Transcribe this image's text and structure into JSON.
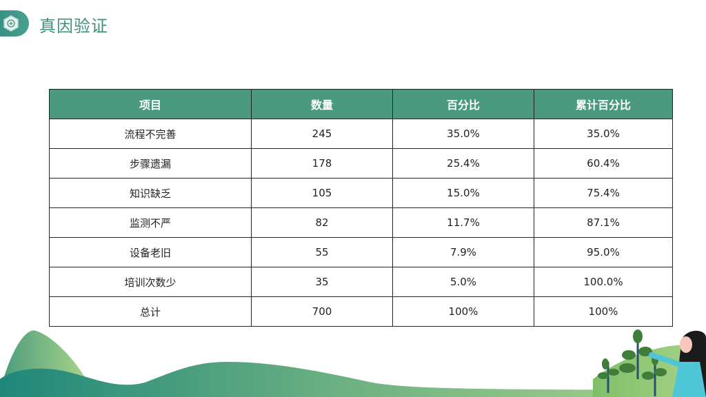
{
  "header": {
    "title": "真因验证",
    "icon": "hexagon-plus-icon"
  },
  "table": {
    "columns": [
      "项目",
      "数量",
      "百分比",
      "累计百分比"
    ],
    "rows": [
      [
        "流程不完善",
        "245",
        "35.0%",
        "35.0%"
      ],
      [
        "步骤遗漏",
        "178",
        "25.4%",
        "60.4%"
      ],
      [
        "知识缺乏",
        "105",
        "15.0%",
        "75.4%"
      ],
      [
        "监测不严",
        "82",
        "11.7%",
        "87.1%"
      ],
      [
        "设备老旧",
        "55",
        "7.9%",
        "95.0%"
      ],
      [
        "培训次数少",
        "35",
        "5.0%",
        "100.0%"
      ],
      [
        "总计",
        "700",
        "100%",
        "100%"
      ]
    ]
  },
  "colors": {
    "accent": "#4b9a7f",
    "title": "#3f8f7a"
  }
}
